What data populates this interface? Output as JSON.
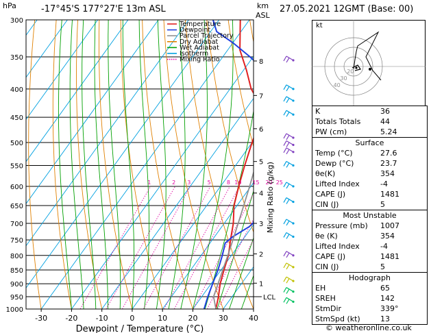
{
  "header": {
    "hpa_label": "hPa",
    "location": "-17°45'S  177°27'E  13m  ASL",
    "km_label": "km",
    "asl_label": "ASL",
    "datetime": "27.05.2021  12GMT  (Base: 00)"
  },
  "chart_data": {
    "type": "line",
    "title": "",
    "xlabel": "Dewpoint / Temperature (°C)",
    "ylabel": "",
    "right_axis_label": "Mixing Ratio (g/kg)",
    "xlim": [
      -35,
      40
    ],
    "ylim": [
      1000,
      300
    ],
    "x_ticks": [
      -30,
      -20,
      -10,
      0,
      10,
      20,
      30,
      40
    ],
    "p_ticks": [
      300,
      350,
      400,
      450,
      500,
      550,
      600,
      650,
      700,
      750,
      800,
      850,
      900,
      950,
      1000
    ],
    "km_ticks": [
      {
        "km": "8",
        "p": 356
      },
      {
        "km": "7",
        "p": 411
      },
      {
        "km": "6",
        "p": 472
      },
      {
        "km": "5",
        "p": 541
      },
      {
        "km": "4",
        "p": 617
      },
      {
        "km": "3",
        "p": 700
      },
      {
        "km": "2",
        "p": 795
      },
      {
        "km": "1",
        "p": 898
      }
    ],
    "lcl": {
      "label": "LCL",
      "p": 950
    },
    "mixing_ratio_labels": [
      "1",
      "2",
      "3",
      "5",
      "8",
      "10",
      "15",
      "20",
      "25"
    ],
    "series": [
      {
        "name": "Temperature",
        "color": "#e02020",
        "points": [
          [
            27.6,
            1000
          ],
          [
            25.5,
            950
          ],
          [
            23,
            900
          ],
          [
            21,
            850
          ],
          [
            19,
            800
          ],
          [
            16,
            750
          ],
          [
            13,
            700
          ],
          [
            9,
            650
          ],
          [
            6,
            600
          ],
          [
            3,
            550
          ],
          [
            0,
            500
          ],
          [
            -3,
            450
          ],
          [
            -8,
            420
          ],
          [
            -13,
            400
          ],
          [
            -19,
            370
          ],
          [
            -26,
            340
          ],
          [
            -33,
            300
          ]
        ]
      },
      {
        "name": "Dewpoint",
        "color": "#2040e0",
        "points": [
          [
            23.7,
            1000
          ],
          [
            22,
            950
          ],
          [
            20.5,
            900
          ],
          [
            19,
            850
          ],
          [
            17,
            800
          ],
          [
            15,
            760
          ],
          [
            16,
            740
          ],
          [
            19,
            710
          ],
          [
            19.5,
            700
          ],
          [
            18.5,
            680
          ],
          [
            19,
            660
          ],
          [
            16,
            650
          ],
          [
            17,
            630
          ],
          [
            15,
            620
          ],
          [
            16,
            610
          ],
          [
            14,
            600
          ],
          [
            11,
            595
          ],
          [
            15,
            585
          ],
          [
            13,
            570
          ],
          [
            15,
            560
          ],
          [
            10,
            550
          ],
          [
            14,
            540
          ],
          [
            10,
            530
          ],
          [
            10,
            500
          ],
          [
            7,
            470
          ],
          [
            3,
            450
          ],
          [
            5,
            440
          ],
          [
            -2,
            420
          ],
          [
            -8,
            400
          ],
          [
            -13,
            380
          ],
          [
            -17,
            360
          ],
          [
            -21,
            350
          ],
          [
            -30,
            330
          ],
          [
            -38,
            315
          ],
          [
            -42,
            300
          ]
        ]
      },
      {
        "name": "Parcel Trajectory",
        "color": "#909090",
        "points": [
          [
            27.6,
            1000
          ],
          [
            23.9,
            950
          ],
          [
            22.3,
            900
          ],
          [
            20.6,
            850
          ],
          [
            18.8,
            800
          ],
          [
            16.8,
            750
          ],
          [
            14.6,
            700
          ],
          [
            12.2,
            650
          ],
          [
            9.6,
            600
          ],
          [
            6.6,
            550
          ],
          [
            3.1,
            500
          ],
          [
            -1,
            450
          ],
          [
            -6,
            400
          ],
          [
            -11,
            370
          ],
          [
            -16,
            340
          ],
          [
            -22,
            300
          ]
        ]
      }
    ],
    "legend": {
      "placement": "top-left",
      "entries": [
        {
          "name": "Temperature",
          "color": "#e02020",
          "style": "solid"
        },
        {
          "name": "Dewpoint",
          "color": "#2040e0",
          "style": "solid"
        },
        {
          "name": "Parcel Trajectory",
          "color": "#909090",
          "style": "solid"
        },
        {
          "name": "Dry Adiabat",
          "color": "#e08000",
          "style": "solid"
        },
        {
          "name": "Wet Adiabat",
          "color": "#00a000",
          "style": "solid"
        },
        {
          "name": "Isotherm",
          "color": "#00a0e0",
          "style": "solid"
        },
        {
          "name": "Mixing Ratio",
          "color": "#e000a0",
          "style": "dotted"
        }
      ]
    }
  },
  "hodograph": {
    "label": "kt",
    "ring_labels": [
      "40",
      "30",
      "20"
    ]
  },
  "indices": {
    "general": [
      {
        "label": "K",
        "value": "36"
      },
      {
        "label": "Totals Totals",
        "value": "44"
      },
      {
        "label": "PW (cm)",
        "value": "5.24"
      }
    ],
    "surface": {
      "title": "Surface",
      "rows": [
        {
          "label": "Temp (°C)",
          "value": "27.6"
        },
        {
          "label": "Dewp (°C)",
          "value": "23.7"
        },
        {
          "label": "θe(K)",
          "value": "354"
        },
        {
          "label": "Lifted Index",
          "value": "-4"
        },
        {
          "label": "CAPE (J)",
          "value": "1481"
        },
        {
          "label": "CIN (J)",
          "value": "5"
        }
      ]
    },
    "most_unstable": {
      "title": "Most Unstable",
      "rows": [
        {
          "label": "Pressure (mb)",
          "value": "1007"
        },
        {
          "label": "θe (K)",
          "value": "354"
        },
        {
          "label": "Lifted Index",
          "value": "-4"
        },
        {
          "label": "CAPE (J)",
          "value": "1481"
        },
        {
          "label": "CIN (J)",
          "value": "5"
        }
      ]
    },
    "hodograph_table": {
      "title": "Hodograph",
      "rows": [
        {
          "label": "EH",
          "value": "65"
        },
        {
          "label": "SREH",
          "value": "142"
        },
        {
          "label": "StmDir",
          "value": "339°"
        },
        {
          "label": "StmSpd (kt)",
          "value": "13"
        }
      ]
    }
  },
  "footer": {
    "copyright": "© weatheronline.co.uk"
  },
  "colors": {
    "temperature": "#e02020",
    "dewpoint": "#2040e0",
    "parcel": "#909090",
    "dry_adiabat": "#e08000",
    "wet_adiabat": "#00a000",
    "isotherm": "#00a0e0",
    "mixing_ratio": "#e000a0"
  }
}
